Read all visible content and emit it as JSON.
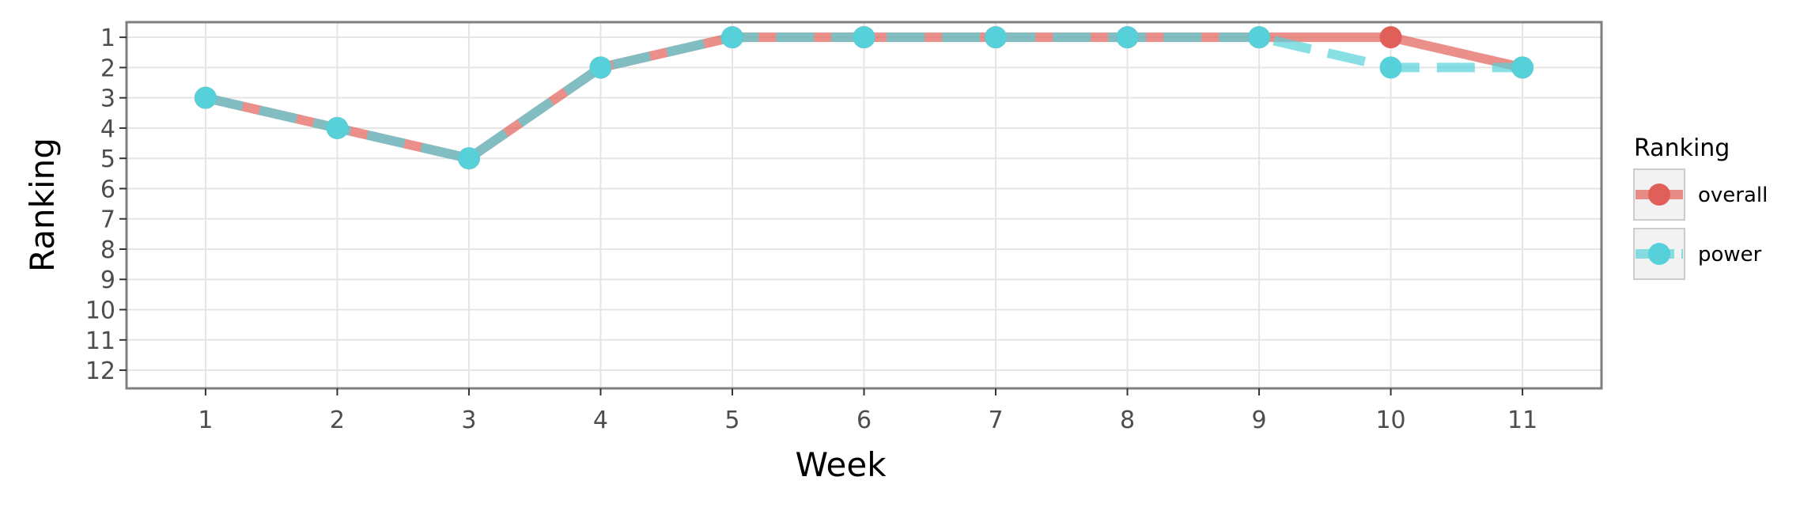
{
  "chart_data": {
    "type": "line",
    "xlabel": "Week",
    "ylabel": "Ranking",
    "x": [
      1,
      2,
      3,
      4,
      5,
      6,
      7,
      8,
      9,
      10,
      11
    ],
    "x_ticks": [
      "1",
      "2",
      "3",
      "4",
      "5",
      "6",
      "7",
      "8",
      "9",
      "10",
      "11"
    ],
    "y_ticks": [
      "1",
      "2",
      "3",
      "4",
      "5",
      "6",
      "7",
      "8",
      "9",
      "10",
      "11",
      "12"
    ],
    "xlim": [
      0.4,
      11.6
    ],
    "ylim": [
      12.6,
      0.5
    ],
    "y_reversed": true,
    "grid": true,
    "legend": {
      "title": "Ranking",
      "placement": "right"
    },
    "series": [
      {
        "name": "overall",
        "values": [
          3,
          4,
          5,
          2,
          1,
          1,
          1,
          1,
          1,
          1,
          2
        ],
        "color": "#e15f59",
        "line_style": "solid"
      },
      {
        "name": "power",
        "values": [
          3,
          4,
          5,
          2,
          1,
          1,
          1,
          1,
          1,
          2,
          2
        ],
        "color": "#56d1d9",
        "line_style": "dashed"
      }
    ]
  }
}
